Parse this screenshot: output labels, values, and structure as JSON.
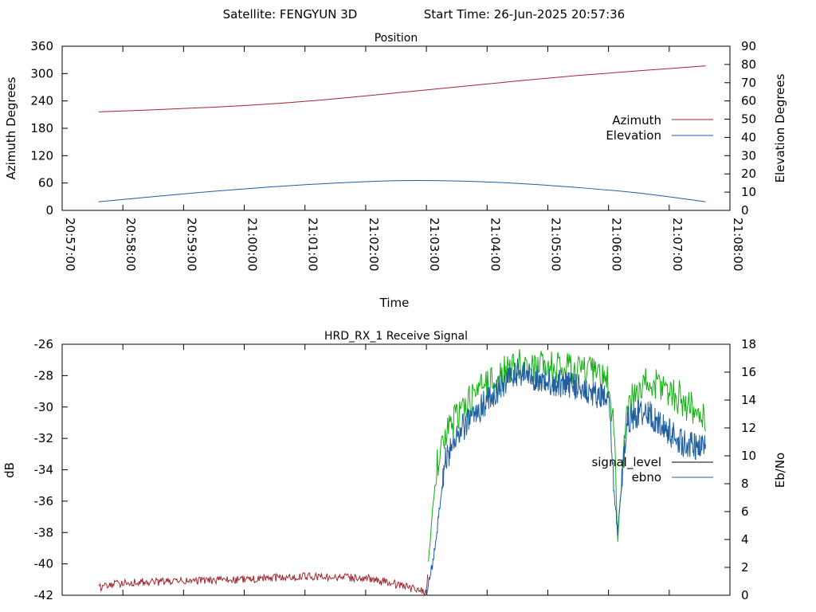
{
  "header": {
    "satellite_label": "Satellite: FENGYUN 3D",
    "start_time_label": "Start Time: 26-Jun-2025 20:57:36"
  },
  "chart_data": [
    {
      "type": "line",
      "title": "Position",
      "xlabel": "Time",
      "ylabel": "Azimuth Degrees",
      "y2label": "Elevation Degrees",
      "x_tick_labels": [
        "20:57:00",
        "20:58:00",
        "20:59:00",
        "21:00:00",
        "21:01:00",
        "21:02:00",
        "21:03:00",
        "21:04:00",
        "21:05:00",
        "21:06:00",
        "21:07:00",
        "21:08:00"
      ],
      "xlim_minutes": [
        0,
        11
      ],
      "ylim": [
        0,
        360
      ],
      "y_ticks": [
        "0",
        "60",
        "120",
        "180",
        "240",
        "300",
        "360"
      ],
      "y2lim": [
        0,
        90
      ],
      "y2_ticks": [
        "0",
        "10",
        "20",
        "30",
        "40",
        "50",
        "60",
        "70",
        "80",
        "90"
      ],
      "grid": false,
      "legend_position": "right",
      "series": [
        {
          "name": "Azimuth",
          "axis": "left",
          "color": "#a0262d",
          "x_minutes": [
            0.6,
            1.6,
            2.6,
            3.6,
            4.6,
            5.6,
            6.6,
            7.6,
            8.6,
            9.6,
            10.6
          ],
          "values": [
            216,
            221,
            227,
            235,
            246,
            259,
            272,
            285,
            297,
            307,
            317
          ]
        },
        {
          "name": "Elevation",
          "axis": "right",
          "color": "#1f5fa0",
          "x_minutes": [
            0.6,
            1.5,
            2.5,
            3.5,
            4.5,
            5.5,
            6.5,
            7.5,
            8.5,
            9.5,
            10.6
          ],
          "values": [
            4.7,
            7.5,
            10.5,
            13.0,
            15.0,
            16.3,
            16.1,
            14.8,
            12.5,
            9.5,
            4.7
          ]
        }
      ]
    },
    {
      "type": "line",
      "title": "HRD_RX_1 Receive Signal",
      "xlabel": "",
      "ylabel": "dB",
      "y2label": "Eb/No",
      "xlim_minutes": [
        0,
        11
      ],
      "ylim": [
        -42,
        -26
      ],
      "y_ticks": [
        "-42",
        "-40",
        "-38",
        "-36",
        "-34",
        "-32",
        "-30",
        "-28",
        "-26"
      ],
      "y2lim": [
        0,
        18
      ],
      "y2_ticks": [
        "0",
        "2",
        "4",
        "6",
        "8",
        "10",
        "12",
        "14",
        "16",
        "18"
      ],
      "grid": false,
      "legend_position": "right",
      "series": [
        {
          "name": "signal_level",
          "axis": "left",
          "color": "#a0262d",
          "high_color": "#10b010",
          "x_minutes": [
            0.6,
            1.0,
            2.0,
            3.0,
            4.0,
            5.0,
            5.5,
            6.0,
            6.1,
            6.2,
            6.35,
            6.5,
            7.0,
            7.5,
            8.0,
            8.5,
            8.7,
            9.0,
            9.1,
            9.15,
            9.3,
            9.6,
            9.9,
            10.2,
            10.5,
            10.6
          ],
          "values": [
            -41.5,
            -41.2,
            -41.1,
            -41.0,
            -40.8,
            -40.9,
            -41.3,
            -41.8,
            -36.5,
            -33.0,
            -31.5,
            -30.5,
            -28.5,
            -27.3,
            -27.5,
            -27.6,
            -27.8,
            -28.5,
            -32.0,
            -38.5,
            -30.0,
            -28.5,
            -28.7,
            -29.5,
            -30.5,
            -31.0
          ]
        },
        {
          "name": "ebno",
          "axis": "right",
          "color": "#1f5fa0",
          "x_minutes": [
            6.0,
            6.15,
            6.3,
            6.5,
            7.0,
            7.5,
            8.0,
            8.5,
            8.7,
            9.0,
            9.1,
            9.15,
            9.3,
            9.6,
            9.9,
            10.2,
            10.5,
            10.6
          ],
          "values": [
            0.0,
            3.5,
            9.5,
            11.5,
            14.0,
            16.0,
            15.3,
            15.0,
            14.5,
            14.0,
            7.0,
            4.5,
            12.5,
            13.3,
            12.0,
            11.0,
            10.5,
            10.5
          ]
        }
      ]
    }
  ]
}
